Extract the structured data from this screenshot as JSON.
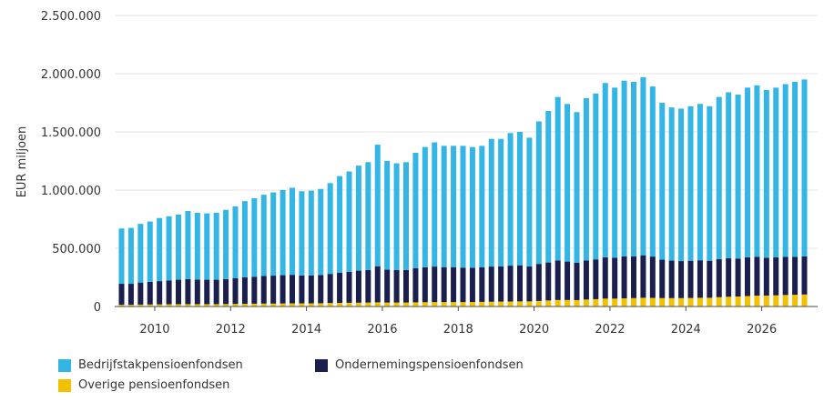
{
  "chart_data": {
    "type": "bar",
    "stacked": true,
    "ylabel": "EUR miljoen",
    "ylim": [
      0,
      2500000
    ],
    "yticks": [
      0,
      500000,
      1000000,
      1500000,
      2000000,
      2500000
    ],
    "ytick_labels": [
      "0",
      "500.000",
      "1.000.000",
      "1.500.000",
      "2.000.000",
      "2.500.000"
    ],
    "xticks": [
      "2010",
      "2012",
      "2014",
      "2016",
      "2018",
      "2020",
      "2022",
      "2024",
      "2026"
    ],
    "x_start": "2009-Q1",
    "x_end": "2025-Q4",
    "grid": "horizontal",
    "legend_position": "bottom-left",
    "totals": [
      670000,
      675000,
      710000,
      730000,
      760000,
      775000,
      790000,
      820000,
      805000,
      800000,
      805000,
      830000,
      860000,
      905000,
      930000,
      960000,
      980000,
      1000000,
      1020000,
      990000,
      995000,
      1010000,
      1060000,
      1120000,
      1160000,
      1210000,
      1240000,
      1390000,
      1250000,
      1230000,
      1240000,
      1320000,
      1370000,
      1410000,
      1380000,
      1380000,
      1380000,
      1370000,
      1380000,
      1440000,
      1440000,
      1490000,
      1500000,
      1450000,
      1590000,
      1680000,
      1800000,
      1740000,
      1670000,
      1790000,
      1830000,
      1920000,
      1880000,
      1940000,
      1930000,
      1970000,
      1890000,
      1750000,
      1710000,
      1700000,
      1720000,
      1740000,
      1720000,
      1800000,
      1840000,
      1820000,
      1880000,
      1900000,
      1860000,
      1880000,
      1910000,
      1930000,
      1950000
    ],
    "series": [
      {
        "name": "Overige pensioenfondsen",
        "color": "#f2c200",
        "values": [
          15000,
          15000,
          16000,
          17000,
          18000,
          19000,
          20000,
          20000,
          20000,
          20000,
          20000,
          21000,
          22000,
          23000,
          24000,
          25000,
          25000,
          26000,
          27000,
          27000,
          27000,
          28000,
          30000,
          31000,
          32000,
          33000,
          34000,
          36000,
          34000,
          34000,
          34000,
          36000,
          37000,
          38000,
          38000,
          38000,
          38000,
          39000,
          40000,
          41000,
          42000,
          43000,
          44000,
          44000,
          48000,
          52000,
          56000,
          56000,
          55000,
          60000,
          63000,
          68000,
          68000,
          70000,
          72000,
          75000,
          74000,
          72000,
          72000,
          72000,
          73000,
          75000,
          75000,
          80000,
          84000,
          86000,
          90000,
          93000,
          94000,
          96000,
          99000,
          101000,
          103000
        ]
      },
      {
        "name": "Ondernemingspensioenfondsen",
        "color": "#1b1f4d",
        "values": [
          180000,
          180000,
          190000,
          195000,
          200000,
          205000,
          210000,
          215000,
          212000,
          210000,
          210000,
          214000,
          220000,
          228000,
          232000,
          237000,
          240000,
          243000,
          245000,
          240000,
          240000,
          242000,
          250000,
          260000,
          265000,
          275000,
          280000,
          310000,
          282000,
          280000,
          280000,
          292000,
          300000,
          305000,
          300000,
          298000,
          296000,
          294000,
          296000,
          302000,
          302000,
          308000,
          310000,
          300000,
          318000,
          326000,
          340000,
          330000,
          320000,
          335000,
          342000,
          355000,
          350000,
          360000,
          358000,
          365000,
          355000,
          330000,
          322000,
          318000,
          320000,
          322000,
          318000,
          326000,
          330000,
          326000,
          333000,
          333000,
          325000,
          326000,
          327000,
          326000,
          327000
        ]
      },
      {
        "name": "Bedrijfstakpensioenfondsen",
        "color": "#33b6e5",
        "values": [
          475000,
          480000,
          504000,
          518000,
          542000,
          551000,
          560000,
          585000,
          573000,
          570000,
          575000,
          595000,
          618000,
          654000,
          674000,
          698000,
          715000,
          731000,
          748000,
          723000,
          728000,
          740000,
          780000,
          829000,
          863000,
          902000,
          926000,
          1044000,
          934000,
          916000,
          926000,
          992000,
          1033000,
          1067000,
          1042000,
          1044000,
          1046000,
          1037000,
          1044000,
          1097000,
          1096000,
          1139000,
          1146000,
          1106000,
          1224000,
          1302000,
          1404000,
          1354000,
          1295000,
          1395000,
          1425000,
          1497000,
          1462000,
          1510000,
          1500000,
          1530000,
          1461000,
          1348000,
          1316000,
          1310000,
          1327000,
          1343000,
          1327000,
          1394000,
          1426000,
          1408000,
          1457000,
          1474000,
          1441000,
          1458000,
          1484000,
          1503000,
          1520000
        ]
      }
    ],
    "legend": [
      "Bedrijfstakpensioenfondsen",
      "Ondernemingspensioenfondsen",
      "Overige pensioenfondsen"
    ]
  }
}
